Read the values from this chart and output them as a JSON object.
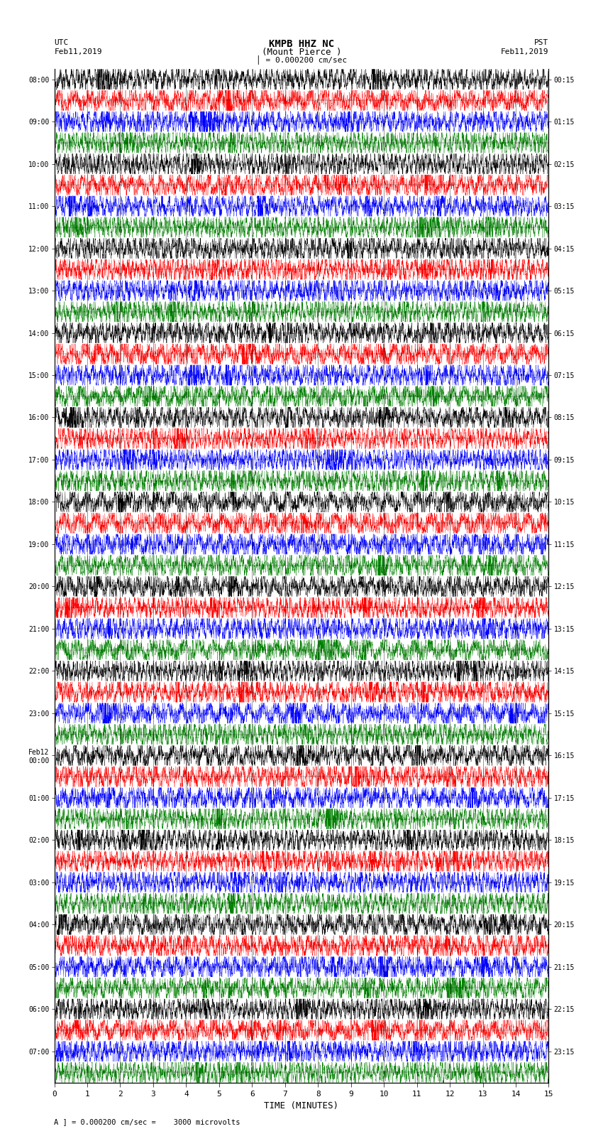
{
  "title_line1": "KMPB HHZ NC",
  "title_line2": "(Mount Pierce )",
  "scale_text": "= 0.000200 cm/sec",
  "label_left_top": "UTC",
  "label_left_date": "Feb11,2019",
  "label_right_top": "PST",
  "label_right_date": "Feb11,2019",
  "xlabel": "TIME (MINUTES)",
  "bottom_label": "= 0.000200 cm/sec =    3000 microvolts",
  "utc_times_left": [
    "08:00",
    "09:00",
    "10:00",
    "11:00",
    "12:00",
    "13:00",
    "14:00",
    "15:00",
    "16:00",
    "17:00",
    "18:00",
    "19:00",
    "20:00",
    "21:00",
    "22:00",
    "23:00",
    "Feb12\n00:00",
    "01:00",
    "02:00",
    "03:00",
    "04:00",
    "05:00",
    "06:00",
    "07:00"
  ],
  "pst_times_right": [
    "00:15",
    "01:15",
    "02:15",
    "03:15",
    "04:15",
    "05:15",
    "06:15",
    "07:15",
    "08:15",
    "09:15",
    "10:15",
    "11:15",
    "12:15",
    "13:15",
    "14:15",
    "15:15",
    "16:15",
    "17:15",
    "18:15",
    "19:15",
    "20:15",
    "21:15",
    "22:15",
    "23:15"
  ],
  "n_traces": 48,
  "n_points": 4500,
  "x_min": 0,
  "x_max": 15,
  "colors": [
    "black",
    "red",
    "blue",
    "green"
  ],
  "background_color": "white",
  "fig_width": 8.5,
  "fig_height": 16.13,
  "dpi": 100
}
